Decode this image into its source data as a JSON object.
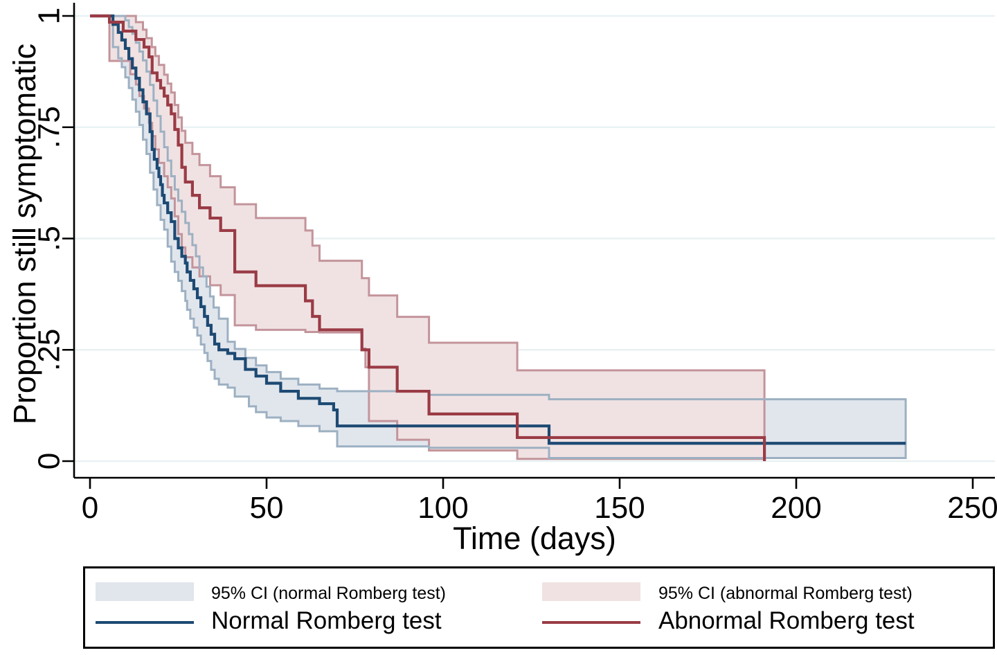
{
  "figure": {
    "background": "#ffffff",
    "y_axis": {
      "title": "Proportion still symptomatic",
      "ticks": [
        {
          "v": 1,
          "label": "1"
        },
        {
          "v": 0.75,
          "label": ".75"
        },
        {
          "v": 0.5,
          "label": ".5"
        },
        {
          "v": 0.25,
          "label": ".25"
        },
        {
          "v": 0,
          "label": "0"
        }
      ]
    },
    "x_axis": {
      "title": "Time (days)",
      "ticks": [
        {
          "v": 0,
          "label": "0"
        },
        {
          "v": 50,
          "label": "50"
        },
        {
          "v": 100,
          "label": "100"
        },
        {
          "v": 150,
          "label": "150"
        },
        {
          "v": 200,
          "label": "200"
        },
        {
          "v": 250,
          "label": "250"
        }
      ]
    }
  },
  "colors": {
    "normal_line": "#1d4a73",
    "abnormal_line": "#9a3b45",
    "normal_band_fill": "#e1e6ed",
    "normal_band_edge": "#9db0c2",
    "abnormal_band_fill": "#f0e2e3",
    "abnormal_band_edge": "#c3949b",
    "gridline": "#e9f1f3",
    "axis": "#000000"
  },
  "legend": {
    "entries": [
      {
        "type": "area",
        "label": "95% CI (normal Romberg test)",
        "fill": "#e1e6ed"
      },
      {
        "type": "area",
        "label": "95% CI (abnormal Romberg test)",
        "fill": "#f0e2e3"
      },
      {
        "type": "line",
        "label": "Normal Romberg test",
        "color": "#1d4a73"
      },
      {
        "type": "line",
        "label": "Abnormal Romberg test",
        "color": "#9a3b45"
      }
    ]
  },
  "chart_data": {
    "type": "line",
    "subtype": "kaplan-meier-step",
    "title": "",
    "xlabel": "Time (days)",
    "ylabel": "Proportion still symptomatic",
    "xlim": [
      0,
      250
    ],
    "ylim": [
      0,
      1
    ],
    "x_ticks": [
      0,
      50,
      100,
      150,
      200,
      250
    ],
    "y_ticks": [
      0,
      0.25,
      0.5,
      0.75,
      1
    ],
    "grid": "horizontal",
    "legend_position": "bottom",
    "series": [
      {
        "name": "Normal Romberg test",
        "color": "#1d4a73",
        "band_label": "95% CI (normal Romberg test)",
        "band_fill": "#e1e6ed",
        "band_edge": "#9db0c2",
        "points": [
          [
            0,
            1
          ],
          [
            6.5,
            0.981
          ],
          [
            8,
            0.963
          ],
          [
            9,
            0.946
          ],
          [
            10,
            0.927
          ],
          [
            11,
            0.904
          ],
          [
            12,
            0.883
          ],
          [
            13,
            0.86
          ],
          [
            14,
            0.834
          ],
          [
            15,
            0.807
          ],
          [
            16,
            0.78
          ],
          [
            17,
            0.74
          ],
          [
            17.6,
            0.7
          ],
          [
            18.2,
            0.678
          ],
          [
            19,
            0.658
          ],
          [
            19.5,
            0.639
          ],
          [
            20,
            0.621
          ],
          [
            20.5,
            0.597
          ],
          [
            21,
            0.58
          ],
          [
            22,
            0.558
          ],
          [
            23,
            0.538
          ],
          [
            24,
            0.5
          ],
          [
            25,
            0.479
          ],
          [
            26,
            0.46
          ],
          [
            27,
            0.445
          ],
          [
            27.5,
            0.425
          ],
          [
            28.4,
            0.406
          ],
          [
            29.4,
            0.387
          ],
          [
            30.4,
            0.367
          ],
          [
            31.4,
            0.347
          ],
          [
            32.4,
            0.325
          ],
          [
            33.3,
            0.305
          ],
          [
            34.3,
            0.285
          ],
          [
            35.3,
            0.263
          ],
          [
            36.5,
            0.25
          ],
          [
            39,
            0.242
          ],
          [
            41,
            0.23
          ],
          [
            44,
            0.206
          ],
          [
            47,
            0.191
          ],
          [
            50,
            0.175
          ],
          [
            54,
            0.157
          ],
          [
            59,
            0.141
          ],
          [
            65,
            0.129
          ],
          [
            69,
            0.115
          ],
          [
            70,
            0.079
          ],
          [
            130,
            0.04
          ],
          [
            231,
            0.04
          ]
        ],
        "ci_upper": [
          [
            0,
            1
          ],
          [
            10,
            0.99
          ],
          [
            11,
            0.975
          ],
          [
            12,
            0.96
          ],
          [
            13,
            0.94
          ],
          [
            14,
            0.92
          ],
          [
            15,
            0.9
          ],
          [
            16,
            0.875
          ],
          [
            17,
            0.845
          ],
          [
            18,
            0.81
          ],
          [
            19,
            0.775
          ],
          [
            20,
            0.74
          ],
          [
            21,
            0.705
          ],
          [
            22,
            0.675
          ],
          [
            23,
            0.64
          ],
          [
            24,
            0.61
          ],
          [
            25,
            0.585
          ],
          [
            26,
            0.56
          ],
          [
            27,
            0.535
          ],
          [
            28,
            0.51
          ],
          [
            29,
            0.485
          ],
          [
            30,
            0.46
          ],
          [
            31,
            0.435
          ],
          [
            32,
            0.415
          ],
          [
            33,
            0.392
          ],
          [
            34,
            0.37
          ],
          [
            35,
            0.345
          ],
          [
            36.5,
            0.32
          ],
          [
            39,
            0.268
          ],
          [
            41,
            0.252
          ],
          [
            44,
            0.232
          ],
          [
            47,
            0.215
          ],
          [
            50,
            0.2
          ],
          [
            54,
            0.185
          ],
          [
            59,
            0.172
          ],
          [
            65,
            0.163
          ],
          [
            70,
            0.157
          ],
          [
            96,
            0.149
          ],
          [
            130,
            0.139
          ],
          [
            231,
            0.139
          ]
        ],
        "ci_lower": [
          [
            0,
            1
          ],
          [
            6.5,
            0.93
          ],
          [
            8,
            0.905
          ],
          [
            9,
            0.885
          ],
          [
            10,
            0.862
          ],
          [
            11,
            0.838
          ],
          [
            12,
            0.812
          ],
          [
            13,
            0.785
          ],
          [
            14,
            0.755
          ],
          [
            15,
            0.722
          ],
          [
            16,
            0.69
          ],
          [
            17,
            0.648
          ],
          [
            18,
            0.61
          ],
          [
            19,
            0.575
          ],
          [
            20,
            0.542
          ],
          [
            21,
            0.52
          ],
          [
            22,
            0.482
          ],
          [
            23,
            0.448
          ],
          [
            24,
            0.425
          ],
          [
            25,
            0.405
          ],
          [
            26,
            0.382
          ],
          [
            27,
            0.36
          ],
          [
            27.5,
            0.34
          ],
          [
            28.4,
            0.32
          ],
          [
            29.4,
            0.3
          ],
          [
            30.4,
            0.282
          ],
          [
            31.4,
            0.262
          ],
          [
            32.4,
            0.243
          ],
          [
            33.3,
            0.225
          ],
          [
            34.3,
            0.205
          ],
          [
            35.3,
            0.185
          ],
          [
            36.5,
            0.172
          ],
          [
            39,
            0.165
          ],
          [
            41,
            0.145
          ],
          [
            45,
            0.123
          ],
          [
            47,
            0.11
          ],
          [
            50,
            0.098
          ],
          [
            54,
            0.09
          ],
          [
            59,
            0.079
          ],
          [
            65,
            0.067
          ],
          [
            70,
            0.033
          ],
          [
            96,
            0.03
          ],
          [
            130,
            0.007
          ],
          [
            231,
            0.007
          ]
        ]
      },
      {
        "name": "Abnormal Romberg test",
        "color": "#9a3b45",
        "band_label": "95% CI (abnormal Romberg test)",
        "band_fill": "#f0e2e3",
        "band_edge": "#c3949b",
        "points": [
          [
            0,
            1
          ],
          [
            5.5,
            0.986
          ],
          [
            9.4,
            0.966
          ],
          [
            13,
            0.947
          ],
          [
            15.3,
            0.93
          ],
          [
            16.7,
            0.908
          ],
          [
            17.6,
            0.872
          ],
          [
            19,
            0.855
          ],
          [
            20,
            0.838
          ],
          [
            21,
            0.82
          ],
          [
            22,
            0.8
          ],
          [
            23,
            0.78
          ],
          [
            24,
            0.745
          ],
          [
            25,
            0.71
          ],
          [
            26,
            0.66
          ],
          [
            27,
            0.627
          ],
          [
            29,
            0.597
          ],
          [
            31,
            0.569
          ],
          [
            34,
            0.546
          ],
          [
            37,
            0.518
          ],
          [
            41,
            0.425
          ],
          [
            47,
            0.394
          ],
          [
            61,
            0.36
          ],
          [
            63,
            0.325
          ],
          [
            65,
            0.295
          ],
          [
            77,
            0.25
          ],
          [
            79,
            0.211
          ],
          [
            87,
            0.157
          ],
          [
            96,
            0.106
          ],
          [
            121,
            0.053
          ],
          [
            191,
            0
          ]
        ],
        "ci_upper": [
          [
            0,
            1
          ],
          [
            13,
            0.986
          ],
          [
            15,
            0.969
          ],
          [
            16,
            0.95
          ],
          [
            17.5,
            0.93
          ],
          [
            18.5,
            0.91
          ],
          [
            19.5,
            0.89
          ],
          [
            21,
            0.868
          ],
          [
            22,
            0.848
          ],
          [
            23,
            0.828
          ],
          [
            24,
            0.8
          ],
          [
            25,
            0.772
          ],
          [
            26,
            0.742
          ],
          [
            27,
            0.715
          ],
          [
            29,
            0.69
          ],
          [
            31,
            0.665
          ],
          [
            34,
            0.64
          ],
          [
            37,
            0.615
          ],
          [
            41,
            0.577
          ],
          [
            47,
            0.546
          ],
          [
            61,
            0.518
          ],
          [
            63,
            0.484
          ],
          [
            65,
            0.45
          ],
          [
            77,
            0.411
          ],
          [
            79,
            0.372
          ],
          [
            87,
            0.324
          ],
          [
            96,
            0.266
          ],
          [
            121,
            0.204
          ],
          [
            191,
            0.204
          ]
        ],
        "ci_lower": [
          [
            0,
            1
          ],
          [
            5.5,
            0.899
          ],
          [
            11.4,
            0.869
          ],
          [
            13,
            0.846
          ],
          [
            14,
            0.82
          ],
          [
            15.3,
            0.792
          ],
          [
            16.7,
            0.76
          ],
          [
            17.6,
            0.73
          ],
          [
            18.5,
            0.7
          ],
          [
            19.5,
            0.67
          ],
          [
            21,
            0.64
          ],
          [
            22,
            0.615
          ],
          [
            23,
            0.59
          ],
          [
            24,
            0.55
          ],
          [
            25,
            0.51
          ],
          [
            26,
            0.48
          ],
          [
            27,
            0.458
          ],
          [
            29,
            0.435
          ],
          [
            31,
            0.415
          ],
          [
            34,
            0.395
          ],
          [
            37,
            0.373
          ],
          [
            41,
            0.305
          ],
          [
            47,
            0.295
          ],
          [
            61,
            0.29
          ],
          [
            65,
            0.289
          ],
          [
            77,
            0.253
          ],
          [
            78,
            0.211
          ],
          [
            79,
            0.09
          ],
          [
            87,
            0.048
          ],
          [
            96,
            0.024
          ],
          [
            121,
            0.005
          ],
          [
            191,
            0.005
          ]
        ]
      }
    ]
  }
}
